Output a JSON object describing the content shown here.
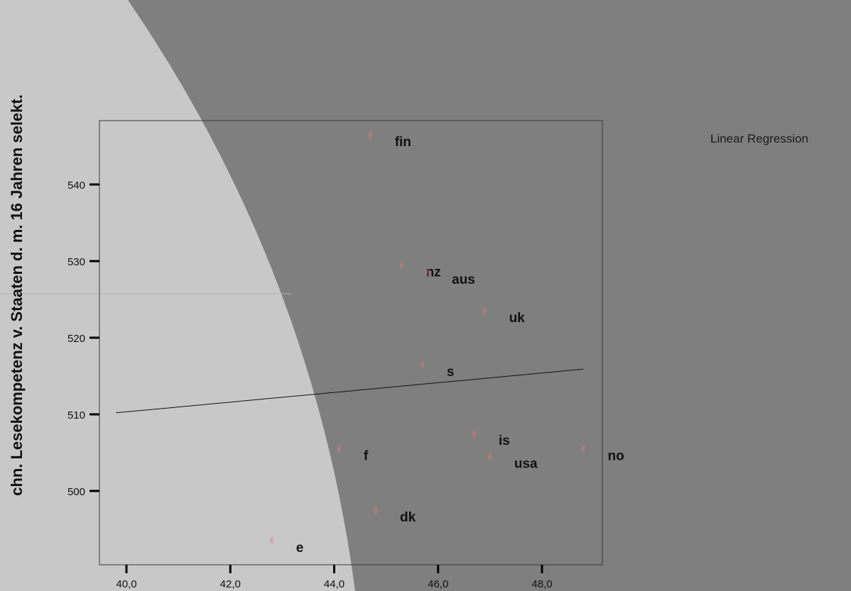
{
  "chart_data": {
    "type": "scatter",
    "title": "",
    "xlabel": "",
    "ylabel": "chn. Lesekompetenz v. Staaten d. m. 16 Jahren selekt.",
    "xlim": [
      39.55,
      49.3
    ],
    "ylim": [
      489.8,
      550.8
    ],
    "x_ticks": [
      "40,0",
      "42,0",
      "44,0",
      "46,0",
      "48,0"
    ],
    "x_tick_values": [
      40,
      42,
      44,
      46,
      48
    ],
    "y_ticks": [
      "500",
      "510",
      "520",
      "530",
      "540"
    ],
    "y_tick_values": [
      500,
      510,
      520,
      530,
      540
    ],
    "points": [
      {
        "label": "fin",
        "x": 44.7,
        "y": 546.5
      },
      {
        "label": "nz",
        "x": 45.3,
        "y": 529.5
      },
      {
        "label": "aus",
        "x": 45.8,
        "y": 528.5
      },
      {
        "label": "uk",
        "x": 46.9,
        "y": 523.5
      },
      {
        "label": "s",
        "x": 45.7,
        "y": 516.5
      },
      {
        "label": "is",
        "x": 46.7,
        "y": 507.5
      },
      {
        "label": "f",
        "x": 44.1,
        "y": 505.5
      },
      {
        "label": "usa",
        "x": 47.0,
        "y": 504.5
      },
      {
        "label": "no",
        "x": 48.8,
        "y": 505.5
      },
      {
        "label": "dk",
        "x": 44.8,
        "y": 497.5
      },
      {
        "label": "e",
        "x": 42.8,
        "y": 493.5
      }
    ],
    "regression": {
      "name": "Linear Regression",
      "x": [
        39.8,
        48.8
      ],
      "y": [
        510.2,
        515.9
      ]
    },
    "legend_position": "top-right",
    "grid": false,
    "colors": {
      "background": "#7f7f7f",
      "highlight": "#c8c8c8",
      "marker": "#e07a7a",
      "text": "#111111",
      "line": "#111111"
    }
  }
}
